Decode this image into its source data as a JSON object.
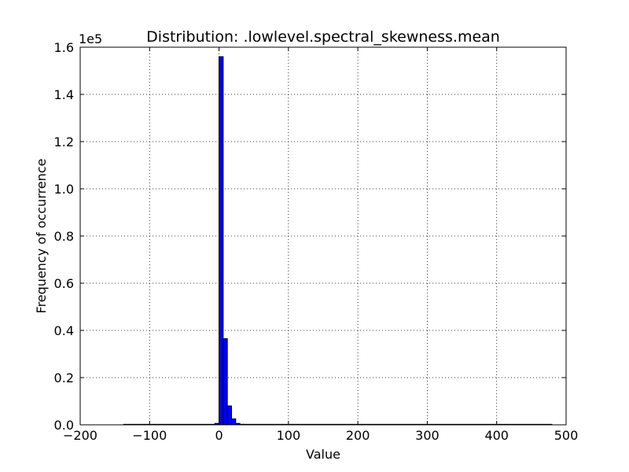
{
  "chart_data": {
    "type": "bar",
    "title": "Distribution: .lowlevel.spectral_skewness.mean",
    "xlabel": "Value",
    "ylabel": "Frequency of occurrence",
    "y_scale_label": "1e5",
    "xlim": [
      -200,
      500
    ],
    "ylim": [
      0,
      160000
    ],
    "x_ticks": [
      -200,
      -100,
      0,
      100,
      200,
      300,
      400,
      500
    ],
    "x_tick_labels": [
      "−200",
      "−100",
      "0",
      "100",
      "200",
      "300",
      "400",
      "500"
    ],
    "y_ticks": [
      0,
      20000,
      40000,
      60000,
      80000,
      100000,
      120000,
      140000,
      160000
    ],
    "y_tick_labels": [
      "0.0",
      "0.2",
      "0.4",
      "0.6",
      "0.8",
      "1.0",
      "1.2",
      "1.4",
      "1.6"
    ],
    "grid": true,
    "bar_color": "#0000ff",
    "bins": [
      {
        "x0": -138,
        "x1": -132,
        "value": 0
      },
      {
        "x0": -132,
        "x1": -126,
        "value": 0
      },
      {
        "x0": -12,
        "x1": -6,
        "value": 0
      },
      {
        "x0": -6,
        "x1": 0,
        "value": 600
      },
      {
        "x0": 0,
        "x1": 6,
        "value": 156000
      },
      {
        "x0": 6,
        "x1": 12,
        "value": 36500
      },
      {
        "x0": 12,
        "x1": 18,
        "value": 8000
      },
      {
        "x0": 18,
        "x1": 24,
        "value": 2500
      },
      {
        "x0": 24,
        "x1": 30,
        "value": 600
      },
      {
        "x0": 30,
        "x1": 36,
        "value": 200
      },
      {
        "x0": 36,
        "x1": 42,
        "value": 80
      },
      {
        "x0": 474,
        "x1": 480,
        "value": 0
      }
    ],
    "baseline_range": [
      -138,
      480
    ]
  }
}
